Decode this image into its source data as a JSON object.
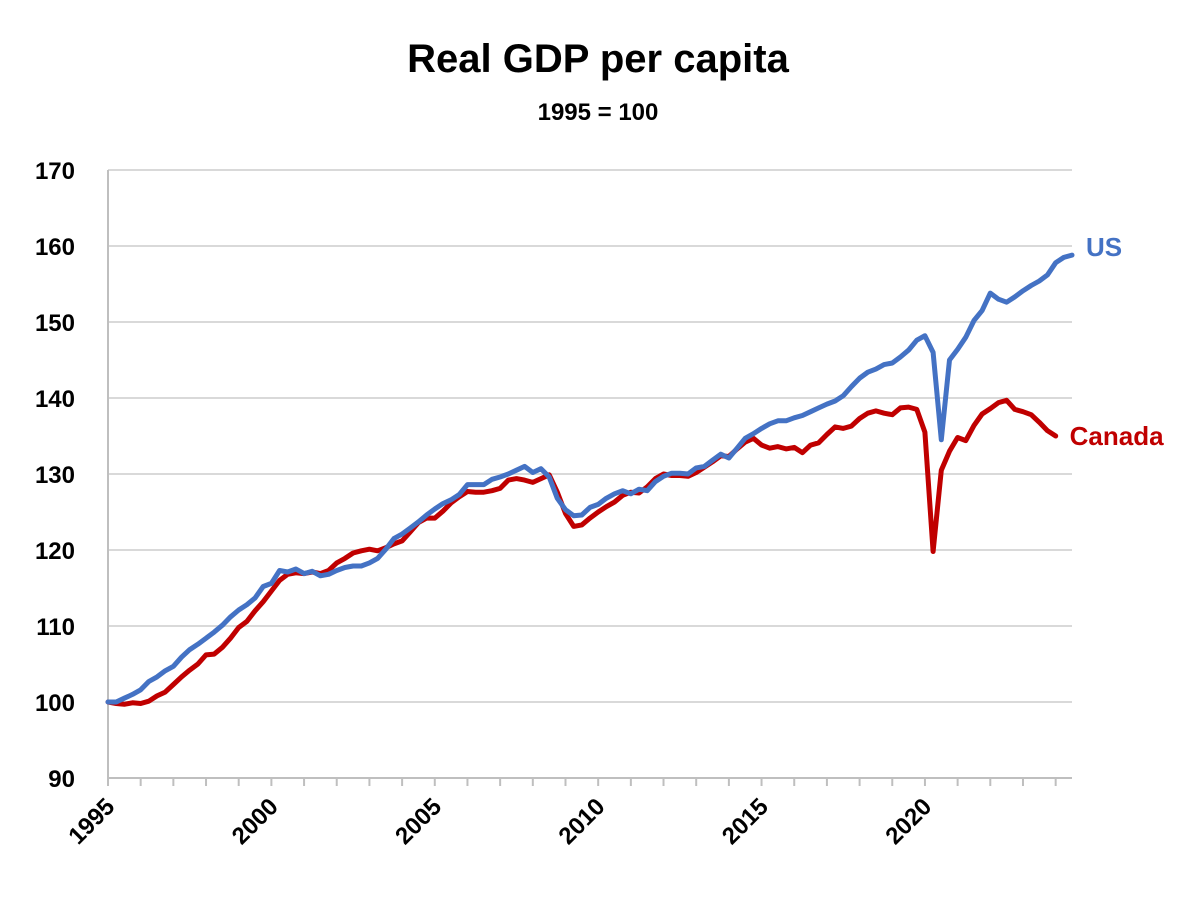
{
  "chart_data": {
    "type": "line",
    "title": "Real GDP per capita",
    "subtitle": "1995 = 100",
    "xlabel": "",
    "ylabel": "",
    "ylim": [
      90,
      170
    ],
    "yticks": [
      90,
      100,
      110,
      120,
      130,
      140,
      150,
      160,
      170
    ],
    "xlim": [
      1995.0,
      2024.5
    ],
    "xticks": [
      1995,
      2000,
      2005,
      2010,
      2015,
      2020
    ],
    "grid": true,
    "legend": "direct labels at right end of lines",
    "series": [
      {
        "name": "Canada",
        "color": "#c00000",
        "points": [
          [
            1995.0,
            100
          ],
          [
            1995.25,
            99.8
          ],
          [
            1995.5,
            99.7
          ],
          [
            1995.75,
            99.9
          ],
          [
            1996.0,
            99.8
          ],
          [
            1996.25,
            100.1
          ],
          [
            1996.5,
            100.8
          ],
          [
            1996.75,
            101.3
          ],
          [
            1997.0,
            102.3
          ],
          [
            1997.25,
            103.3
          ],
          [
            1997.5,
            104.2
          ],
          [
            1997.75,
            105.0
          ],
          [
            1998.0,
            106.2
          ],
          [
            1998.25,
            106.3
          ],
          [
            1998.5,
            107.2
          ],
          [
            1998.75,
            108.4
          ],
          [
            1999.0,
            109.8
          ],
          [
            1999.25,
            110.6
          ],
          [
            1999.5,
            112.0
          ],
          [
            1999.75,
            113.2
          ],
          [
            2000.0,
            114.6
          ],
          [
            2000.25,
            116.0
          ],
          [
            2000.5,
            116.8
          ],
          [
            2000.75,
            117.0
          ],
          [
            2001.0,
            116.9
          ],
          [
            2001.25,
            117.1
          ],
          [
            2001.5,
            116.9
          ],
          [
            2001.75,
            117.3
          ],
          [
            2002.0,
            118.3
          ],
          [
            2002.25,
            118.9
          ],
          [
            2002.5,
            119.6
          ],
          [
            2002.75,
            119.9
          ],
          [
            2003.0,
            120.1
          ],
          [
            2003.25,
            119.9
          ],
          [
            2003.5,
            120.3
          ],
          [
            2003.75,
            120.8
          ],
          [
            2004.0,
            121.2
          ],
          [
            2004.25,
            122.4
          ],
          [
            2004.5,
            123.6
          ],
          [
            2004.75,
            124.2
          ],
          [
            2005.0,
            124.2
          ],
          [
            2005.25,
            125.1
          ],
          [
            2005.5,
            126.2
          ],
          [
            2005.75,
            127.0
          ],
          [
            2006.0,
            127.7
          ],
          [
            2006.25,
            127.6
          ],
          [
            2006.5,
            127.6
          ],
          [
            2006.75,
            127.8
          ],
          [
            2007.0,
            128.1
          ],
          [
            2007.25,
            129.2
          ],
          [
            2007.5,
            129.4
          ],
          [
            2007.75,
            129.2
          ],
          [
            2008.0,
            128.9
          ],
          [
            2008.25,
            129.4
          ],
          [
            2008.5,
            129.9
          ],
          [
            2008.75,
            127.6
          ],
          [
            2009.0,
            124.8
          ],
          [
            2009.25,
            123.1
          ],
          [
            2009.5,
            123.3
          ],
          [
            2009.75,
            124.2
          ],
          [
            2010.0,
            125.0
          ],
          [
            2010.25,
            125.7
          ],
          [
            2010.5,
            126.3
          ],
          [
            2010.75,
            127.2
          ],
          [
            2011.0,
            127.6
          ],
          [
            2011.25,
            127.5
          ],
          [
            2011.5,
            128.3
          ],
          [
            2011.75,
            129.4
          ],
          [
            2012.0,
            130.0
          ],
          [
            2012.25,
            129.8
          ],
          [
            2012.5,
            129.8
          ],
          [
            2012.75,
            129.7
          ],
          [
            2013.0,
            130.2
          ],
          [
            2013.25,
            130.9
          ],
          [
            2013.5,
            131.6
          ],
          [
            2013.75,
            132.4
          ],
          [
            2014.0,
            132.3
          ],
          [
            2014.25,
            133.3
          ],
          [
            2014.5,
            134.2
          ],
          [
            2014.75,
            134.7
          ],
          [
            2015.0,
            133.8
          ],
          [
            2015.25,
            133.4
          ],
          [
            2015.5,
            133.6
          ],
          [
            2015.75,
            133.3
          ],
          [
            2016.0,
            133.5
          ],
          [
            2016.25,
            132.8
          ],
          [
            2016.5,
            133.8
          ],
          [
            2016.75,
            134.1
          ],
          [
            2017.0,
            135.2
          ],
          [
            2017.25,
            136.2
          ],
          [
            2017.5,
            136.0
          ],
          [
            2017.75,
            136.3
          ],
          [
            2018.0,
            137.3
          ],
          [
            2018.25,
            138.0
          ],
          [
            2018.5,
            138.3
          ],
          [
            2018.75,
            138.0
          ],
          [
            2019.0,
            137.8
          ],
          [
            2019.25,
            138.7
          ],
          [
            2019.5,
            138.8
          ],
          [
            2019.75,
            138.5
          ],
          [
            2020.0,
            135.5
          ],
          [
            2020.25,
            119.8
          ],
          [
            2020.5,
            130.5
          ],
          [
            2020.75,
            133.0
          ],
          [
            2021.0,
            134.8
          ],
          [
            2021.25,
            134.4
          ],
          [
            2021.5,
            136.4
          ],
          [
            2021.75,
            137.9
          ],
          [
            2022.0,
            138.6
          ],
          [
            2022.25,
            139.4
          ],
          [
            2022.5,
            139.7
          ],
          [
            2022.75,
            138.5
          ],
          [
            2023.0,
            138.2
          ],
          [
            2023.25,
            137.8
          ],
          [
            2023.5,
            136.8
          ],
          [
            2023.75,
            135.7
          ],
          [
            2024.0,
            135.0
          ]
        ]
      },
      {
        "name": "US",
        "color": "#4472c4",
        "points": [
          [
            1995.0,
            100
          ],
          [
            1995.25,
            100.0
          ],
          [
            1995.5,
            100.5
          ],
          [
            1995.75,
            101.0
          ],
          [
            1996.0,
            101.6
          ],
          [
            1996.25,
            102.7
          ],
          [
            1996.5,
            103.3
          ],
          [
            1996.75,
            104.1
          ],
          [
            1997.0,
            104.7
          ],
          [
            1997.25,
            105.9
          ],
          [
            1997.5,
            106.9
          ],
          [
            1997.75,
            107.6
          ],
          [
            1998.0,
            108.4
          ],
          [
            1998.25,
            109.2
          ],
          [
            1998.5,
            110.1
          ],
          [
            1998.75,
            111.2
          ],
          [
            1999.0,
            112.1
          ],
          [
            1999.25,
            112.8
          ],
          [
            1999.5,
            113.7
          ],
          [
            1999.75,
            115.2
          ],
          [
            2000.0,
            115.6
          ],
          [
            2000.25,
            117.3
          ],
          [
            2000.5,
            117.1
          ],
          [
            2000.75,
            117.5
          ],
          [
            2001.0,
            116.9
          ],
          [
            2001.25,
            117.2
          ],
          [
            2001.5,
            116.6
          ],
          [
            2001.75,
            116.8
          ],
          [
            2002.0,
            117.3
          ],
          [
            2002.25,
            117.7
          ],
          [
            2002.5,
            117.9
          ],
          [
            2002.75,
            117.9
          ],
          [
            2003.0,
            118.3
          ],
          [
            2003.25,
            118.9
          ],
          [
            2003.5,
            120.1
          ],
          [
            2003.75,
            121.5
          ],
          [
            2004.0,
            122.1
          ],
          [
            2004.25,
            122.9
          ],
          [
            2004.5,
            123.7
          ],
          [
            2004.75,
            124.6
          ],
          [
            2005.0,
            125.4
          ],
          [
            2005.25,
            126.1
          ],
          [
            2005.5,
            126.6
          ],
          [
            2005.75,
            127.3
          ],
          [
            2006.0,
            128.6
          ],
          [
            2006.25,
            128.6
          ],
          [
            2006.5,
            128.6
          ],
          [
            2006.75,
            129.3
          ],
          [
            2007.0,
            129.6
          ],
          [
            2007.25,
            130.0
          ],
          [
            2007.5,
            130.5
          ],
          [
            2007.75,
            131.0
          ],
          [
            2008.0,
            130.2
          ],
          [
            2008.25,
            130.7
          ],
          [
            2008.5,
            129.6
          ],
          [
            2008.75,
            126.8
          ],
          [
            2009.0,
            125.3
          ],
          [
            2009.25,
            124.5
          ],
          [
            2009.5,
            124.6
          ],
          [
            2009.75,
            125.6
          ],
          [
            2010.0,
            126.0
          ],
          [
            2010.25,
            126.8
          ],
          [
            2010.5,
            127.4
          ],
          [
            2010.75,
            127.8
          ],
          [
            2011.0,
            127.4
          ],
          [
            2011.25,
            128.0
          ],
          [
            2011.5,
            127.8
          ],
          [
            2011.75,
            129.0
          ],
          [
            2012.0,
            129.7
          ],
          [
            2012.25,
            130.1
          ],
          [
            2012.5,
            130.1
          ],
          [
            2012.75,
            130.0
          ],
          [
            2013.0,
            130.8
          ],
          [
            2013.25,
            131.0
          ],
          [
            2013.5,
            131.8
          ],
          [
            2013.75,
            132.6
          ],
          [
            2014.0,
            132.1
          ],
          [
            2014.25,
            133.4
          ],
          [
            2014.5,
            134.7
          ],
          [
            2014.75,
            135.3
          ],
          [
            2015.0,
            136.0
          ],
          [
            2015.25,
            136.6
          ],
          [
            2015.5,
            137.0
          ],
          [
            2015.75,
            137.0
          ],
          [
            2016.0,
            137.4
          ],
          [
            2016.25,
            137.7
          ],
          [
            2016.5,
            138.2
          ],
          [
            2016.75,
            138.7
          ],
          [
            2017.0,
            139.2
          ],
          [
            2017.25,
            139.6
          ],
          [
            2017.5,
            140.3
          ],
          [
            2017.75,
            141.5
          ],
          [
            2018.0,
            142.6
          ],
          [
            2018.25,
            143.4
          ],
          [
            2018.5,
            143.8
          ],
          [
            2018.75,
            144.4
          ],
          [
            2019.0,
            144.6
          ],
          [
            2019.25,
            145.4
          ],
          [
            2019.5,
            146.3
          ],
          [
            2019.75,
            147.6
          ],
          [
            2020.0,
            148.2
          ],
          [
            2020.25,
            146.0
          ],
          [
            2020.5,
            134.5
          ],
          [
            2020.75,
            145.0
          ],
          [
            2021.0,
            146.4
          ],
          [
            2021.25,
            148.0
          ],
          [
            2021.5,
            150.2
          ],
          [
            2021.75,
            151.5
          ],
          [
            2022.0,
            153.8
          ],
          [
            2022.25,
            153.0
          ],
          [
            2022.5,
            152.6
          ],
          [
            2022.75,
            153.3
          ],
          [
            2023.0,
            154.1
          ],
          [
            2023.25,
            154.8
          ],
          [
            2023.5,
            155.4
          ],
          [
            2023.75,
            156.2
          ],
          [
            2024.0,
            157.8
          ],
          [
            2024.25,
            158.5
          ],
          [
            2024.5,
            158.8
          ]
        ]
      }
    ]
  }
}
